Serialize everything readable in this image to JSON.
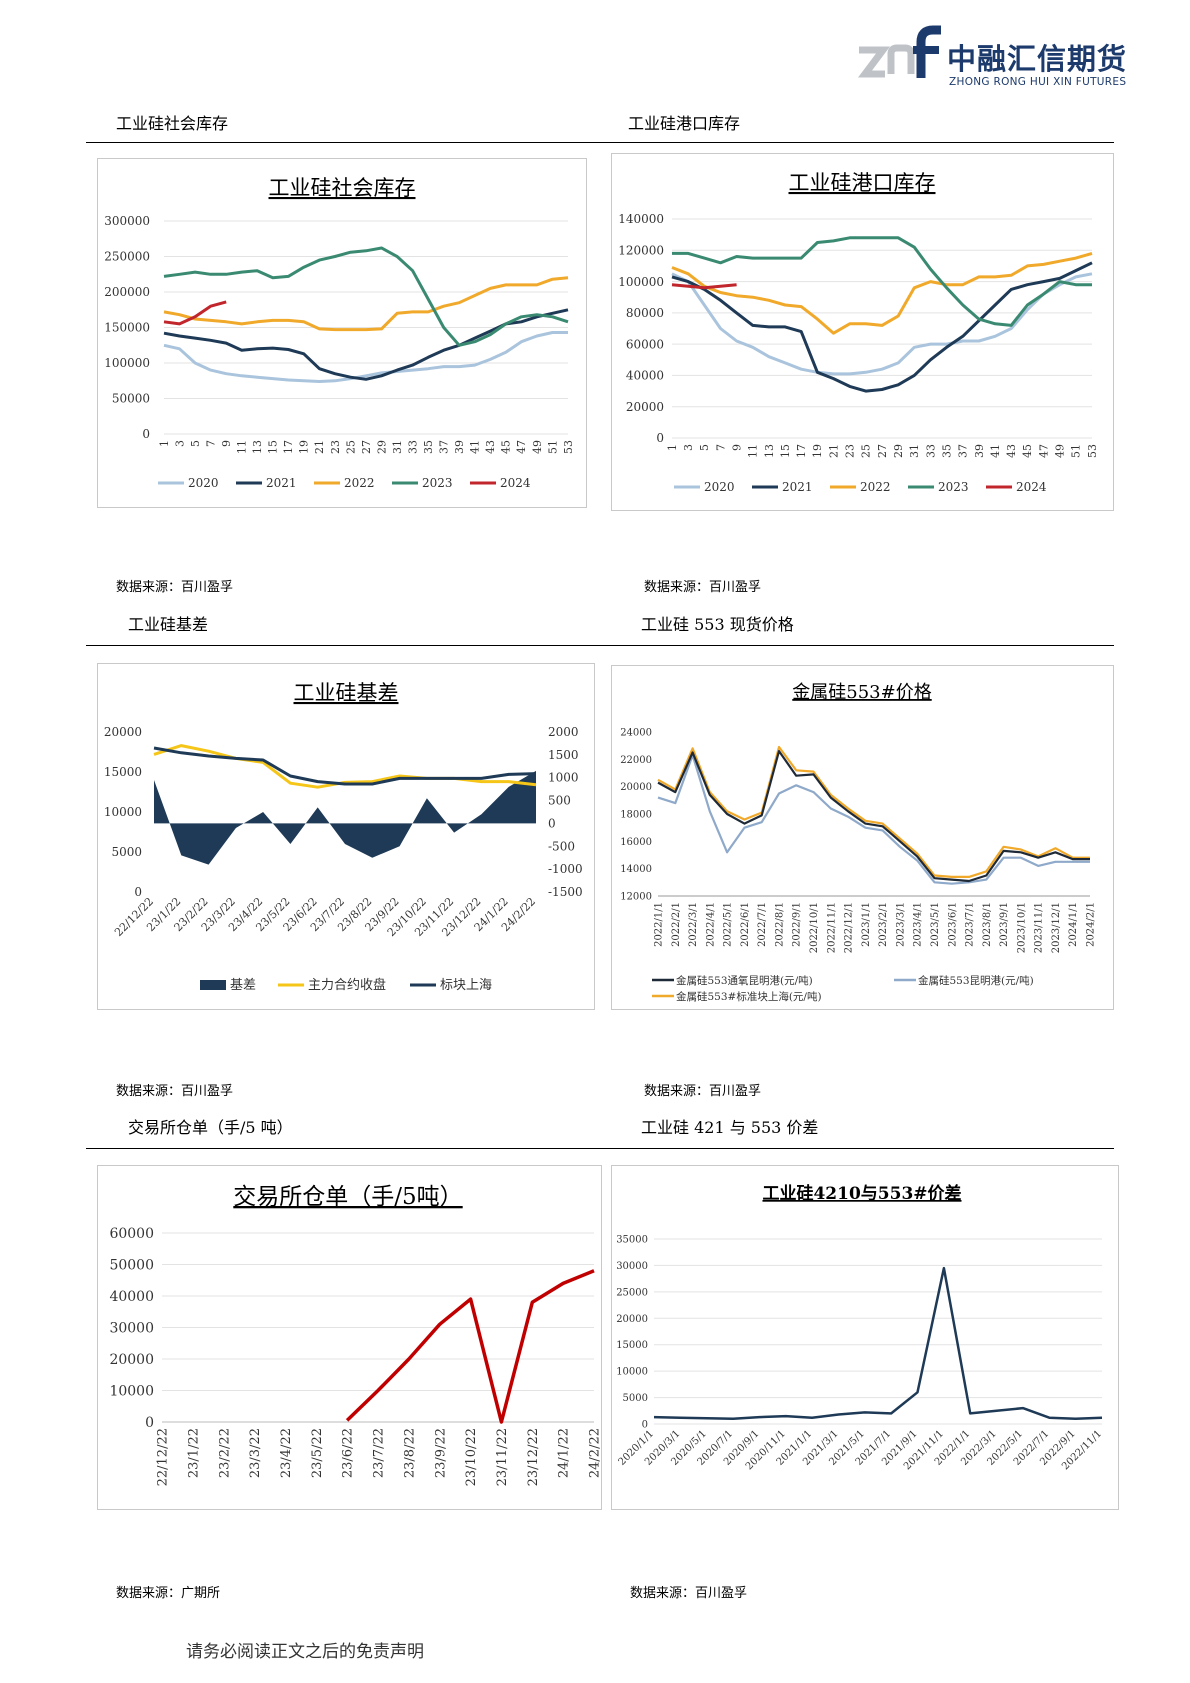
{
  "header": {
    "logo_cn": "中融汇信期货",
    "logo_en": "ZHONG RONG HUI XIN FUTURES",
    "logo_mark_icon": "znf-logo-icon"
  },
  "sections": [
    {
      "title": "工业硅社会库存",
      "source": "数据来源：百川盈孚"
    },
    {
      "title": "工业硅港口库存",
      "source": "数据来源：百川盈孚"
    },
    {
      "title": "工业硅基差",
      "source": "数据来源：百川盈孚"
    },
    {
      "title": "工业硅 553 现货价格",
      "source": "数据来源：百川盈孚"
    },
    {
      "title": "交易所仓单（手/5 吨）",
      "source": "数据来源：广期所"
    },
    {
      "title": "工业硅 421 与 553 价差",
      "source": "数据来源：百川盈孚"
    }
  ],
  "footer": {
    "disclaimer": "请务必阅读正文之后的免责声明"
  },
  "chart_data": [
    {
      "type": "line",
      "title": "工业硅社会库存",
      "categories": [
        "1",
        "3",
        "5",
        "7",
        "9",
        "11",
        "13",
        "15",
        "17",
        "19",
        "21",
        "23",
        "25",
        "27",
        "29",
        "31",
        "33",
        "35",
        "37",
        "39",
        "41",
        "43",
        "45",
        "47",
        "49",
        "51",
        "53"
      ],
      "ylim": [
        0,
        300000
      ],
      "yticks": [
        "300000",
        "250000",
        "200000",
        "150000",
        "100000",
        "50000",
        "0"
      ],
      "legend": "bottom",
      "series": [
        {
          "name": "2020",
          "color": "#a9c4dc",
          "values": [
            125000,
            120000,
            100000,
            90000,
            85000,
            82000,
            80000,
            78000,
            76000,
            75000,
            74000,
            75000,
            78000,
            82000,
            86000,
            88000,
            90000,
            92000,
            95000,
            95000,
            97000,
            105000,
            115000,
            130000,
            138000,
            143000,
            143000
          ]
        },
        {
          "name": "2021",
          "color": "#1e3a56",
          "values": [
            142000,
            138000,
            135000,
            132000,
            128000,
            118000,
            120000,
            121000,
            119000,
            113000,
            92000,
            85000,
            80000,
            77000,
            82000,
            90000,
            97000,
            108000,
            118000,
            125000,
            135000,
            145000,
            155000,
            158000,
            165000,
            170000,
            175000
          ]
        },
        {
          "name": "2022",
          "color": "#f0a92a",
          "values": [
            172000,
            168000,
            162000,
            160000,
            158000,
            155000,
            158000,
            160000,
            160000,
            158000,
            148000,
            147000,
            147000,
            147000,
            148000,
            170000,
            172000,
            172000,
            180000,
            185000,
            195000,
            205000,
            210000,
            210000,
            210000,
            218000,
            220000
          ]
        },
        {
          "name": "2023",
          "color": "#3a8a72",
          "values": [
            222000,
            225000,
            228000,
            225000,
            225000,
            228000,
            230000,
            220000,
            222000,
            235000,
            245000,
            250000,
            256000,
            258000,
            262000,
            250000,
            230000,
            190000,
            150000,
            125000,
            130000,
            140000,
            155000,
            165000,
            168000,
            165000,
            158000
          ]
        },
        {
          "name": "2024",
          "color": "#c0262c",
          "values": [
            158000,
            155000,
            165000,
            180000,
            186000,
            null,
            null,
            null,
            null,
            null,
            null,
            null,
            null,
            null,
            null,
            null,
            null,
            null,
            null,
            null,
            null,
            null,
            null,
            null,
            null,
            null,
            null
          ]
        }
      ]
    },
    {
      "type": "line",
      "title": "工业硅港口库存",
      "categories": [
        "1",
        "3",
        "5",
        "7",
        "9",
        "11",
        "13",
        "15",
        "17",
        "19",
        "21",
        "23",
        "25",
        "27",
        "29",
        "31",
        "33",
        "35",
        "37",
        "39",
        "41",
        "43",
        "45",
        "47",
        "49",
        "51",
        "53"
      ],
      "ylim": [
        0,
        140000
      ],
      "yticks": [
        "140000",
        "120000",
        "100000",
        "80000",
        "60000",
        "40000",
        "20000",
        "0"
      ],
      "legend": "bottom",
      "series": [
        {
          "name": "2020",
          "color": "#a9c4dc",
          "values": [
            105000,
            100000,
            85000,
            70000,
            62000,
            58000,
            52000,
            48000,
            44000,
            42000,
            41000,
            41000,
            42000,
            44000,
            48000,
            58000,
            60000,
            60000,
            62000,
            62000,
            65000,
            70000,
            82000,
            92000,
            98000,
            103000,
            105000
          ]
        },
        {
          "name": "2021",
          "color": "#1e3a56",
          "values": [
            103000,
            100000,
            95000,
            88000,
            80000,
            72000,
            71000,
            71000,
            68000,
            42000,
            38000,
            33000,
            30000,
            31000,
            34000,
            40000,
            50000,
            58000,
            65000,
            75000,
            85000,
            95000,
            98000,
            100000,
            102000,
            107000,
            112000
          ]
        },
        {
          "name": "2022",
          "color": "#f0a92a",
          "values": [
            109000,
            105000,
            97000,
            93000,
            91000,
            90000,
            88000,
            85000,
            84000,
            76000,
            67000,
            73000,
            73000,
            72000,
            78000,
            96000,
            100000,
            98000,
            98000,
            103000,
            103000,
            104000,
            110000,
            111000,
            113000,
            115000,
            118000
          ]
        },
        {
          "name": "2023",
          "color": "#3a8a72",
          "values": [
            118000,
            118000,
            115000,
            112000,
            116000,
            115000,
            115000,
            115000,
            115000,
            125000,
            126000,
            128000,
            128000,
            128000,
            128000,
            122000,
            108000,
            96000,
            85000,
            76000,
            73000,
            72000,
            85000,
            92000,
            100000,
            98000,
            98000
          ]
        },
        {
          "name": "2024",
          "color": "#c0262c",
          "values": [
            98000,
            97000,
            96000,
            97000,
            98000,
            null,
            null,
            null,
            null,
            null,
            null,
            null,
            null,
            null,
            null,
            null,
            null,
            null,
            null,
            null,
            null,
            null,
            null,
            null,
            null,
            null,
            null
          ]
        }
      ]
    },
    {
      "type": "bar+line",
      "title": "工业硅基差",
      "categories": [
        "22/12/22",
        "23/1/22",
        "23/2/22",
        "23/3/22",
        "23/4/22",
        "23/5/22",
        "23/6/22",
        "23/7/22",
        "23/8/22",
        "23/9/22",
        "23/10/22",
        "23/11/22",
        "23/12/22",
        "24/1/22",
        "24/2/22"
      ],
      "ylim": [
        0,
        20000
      ],
      "yticks_left": [
        "20000",
        "15000",
        "10000",
        "5000",
        "0"
      ],
      "y2lim": [
        -1500,
        2000
      ],
      "yticks_right": [
        "2000",
        "1500",
        "1000",
        "500",
        "0",
        "-500",
        "-1000",
        "-1500"
      ],
      "legend": "bottom",
      "series": [
        {
          "name": "基差",
          "color": "#1e3a56",
          "axis": "right",
          "values": [
            950,
            -700,
            -900,
            -100,
            250,
            -450,
            350,
            -450,
            -750,
            -500,
            550,
            -200,
            200,
            800,
            1150
          ]
        },
        {
          "name": "主力合约收盘",
          "color": "#f5c518",
          "axis": "left",
          "values": [
            17200,
            18300,
            17600,
            16700,
            16200,
            13600,
            13100,
            13700,
            13800,
            14500,
            14200,
            14200,
            13800,
            13800,
            13400
          ]
        },
        {
          "name": "标块上海",
          "color": "#1e3a56",
          "axis": "left",
          "values": [
            18000,
            17400,
            17000,
            16700,
            16500,
            14500,
            13800,
            13500,
            13500,
            14200,
            14200,
            14200,
            14200,
            14700,
            14800
          ]
        }
      ]
    },
    {
      "type": "line",
      "title": "金属硅553#价格",
      "categories": [
        "2022/1/1",
        "2022/2/1",
        "2022/3/1",
        "2022/4/1",
        "2022/5/1",
        "2022/6/1",
        "2022/7/1",
        "2022/8/1",
        "2022/9/1",
        "2022/10/1",
        "2022/11/1",
        "2022/12/1",
        "2023/1/1",
        "2023/2/1",
        "2023/3/1",
        "2023/4/1",
        "2023/5/1",
        "2023/6/1",
        "2023/7/1",
        "2023/8/1",
        "2023/9/1",
        "2023/10/1",
        "2023/11/1",
        "2023/12/1",
        "2024/1/1",
        "2024/2/1"
      ],
      "ylim": [
        12000,
        24000
      ],
      "yticks": [
        "24000",
        "22000",
        "20000",
        "18000",
        "16000",
        "14000",
        "12000"
      ],
      "legend": "bottom",
      "series": [
        {
          "name": "金属硅553通氧昆明港(元/吨)",
          "color": "#1e2a38",
          "values": [
            20300,
            19600,
            22500,
            19400,
            18000,
            17300,
            17900,
            22600,
            20800,
            20900,
            19200,
            18200,
            17300,
            17100,
            16000,
            14900,
            13300,
            13200,
            13100,
            13500,
            15300,
            15200,
            14800,
            15200,
            14700,
            14700
          ]
        },
        {
          "name": "金属硅553昆明港(元/吨)",
          "color": "#8ea9c9",
          "values": [
            19200,
            18800,
            22300,
            18200,
            15200,
            17000,
            17400,
            19500,
            20100,
            19600,
            18400,
            17800,
            17000,
            16800,
            15600,
            14600,
            13000,
            12900,
            13000,
            13200,
            14800,
            14800,
            14200,
            14500,
            14500,
            14500
          ]
        },
        {
          "name": "金属硅553#标准块上海(元/吨)",
          "color": "#f0a92a",
          "values": [
            20500,
            19800,
            22800,
            19600,
            18200,
            17600,
            18100,
            22900,
            21200,
            21100,
            19400,
            18400,
            17500,
            17300,
            16200,
            15100,
            13500,
            13400,
            13400,
            13800,
            15600,
            15400,
            14900,
            15500,
            14800,
            14800
          ]
        }
      ]
    },
    {
      "type": "line",
      "title": "交易所仓单（手/5吨）",
      "categories": [
        "22/12/22",
        "23/1/22",
        "23/2/22",
        "23/3/22",
        "23/4/22",
        "23/5/22",
        "23/6/22",
        "23/7/22",
        "23/8/22",
        "23/9/22",
        "23/10/22",
        "23/11/22",
        "23/12/22",
        "24/1/22",
        "24/2/22"
      ],
      "ylim": [
        0,
        60000
      ],
      "yticks": [
        "60000",
        "50000",
        "40000",
        "30000",
        "20000",
        "10000",
        "0"
      ],
      "series": [
        {
          "name": "",
          "color": "#c00000",
          "values": [
            null,
            null,
            null,
            null,
            null,
            null,
            500,
            10000,
            20000,
            31000,
            39000,
            0,
            38000,
            44000,
            48000
          ]
        }
      ]
    },
    {
      "type": "line",
      "title": "工业硅4210与553#价差",
      "categories": [
        "2020/1/1",
        "2020/3/1",
        "2020/5/1",
        "2020/7/1",
        "2020/9/1",
        "2020/11/1",
        "2021/1/1",
        "2021/3/1",
        "2021/5/1",
        "2021/7/1",
        "2021/9/1",
        "2021/11/1",
        "2022/1/1",
        "2022/3/1",
        "2022/5/1",
        "2022/7/1",
        "2022/9/1",
        "2022/11/1"
      ],
      "ylim": [
        0,
        35000
      ],
      "yticks": [
        "35000",
        "30000",
        "25000",
        "20000",
        "15000",
        "10000",
        "5000",
        "0"
      ],
      "series": [
        {
          "name": "",
          "color": "#1e3a56",
          "values": [
            1300,
            1200,
            1100,
            1000,
            1300,
            1500,
            1200,
            1800,
            2200,
            2000,
            6000,
            29500,
            2000,
            2500,
            3000,
            1200,
            1000,
            1200
          ]
        }
      ]
    }
  ]
}
